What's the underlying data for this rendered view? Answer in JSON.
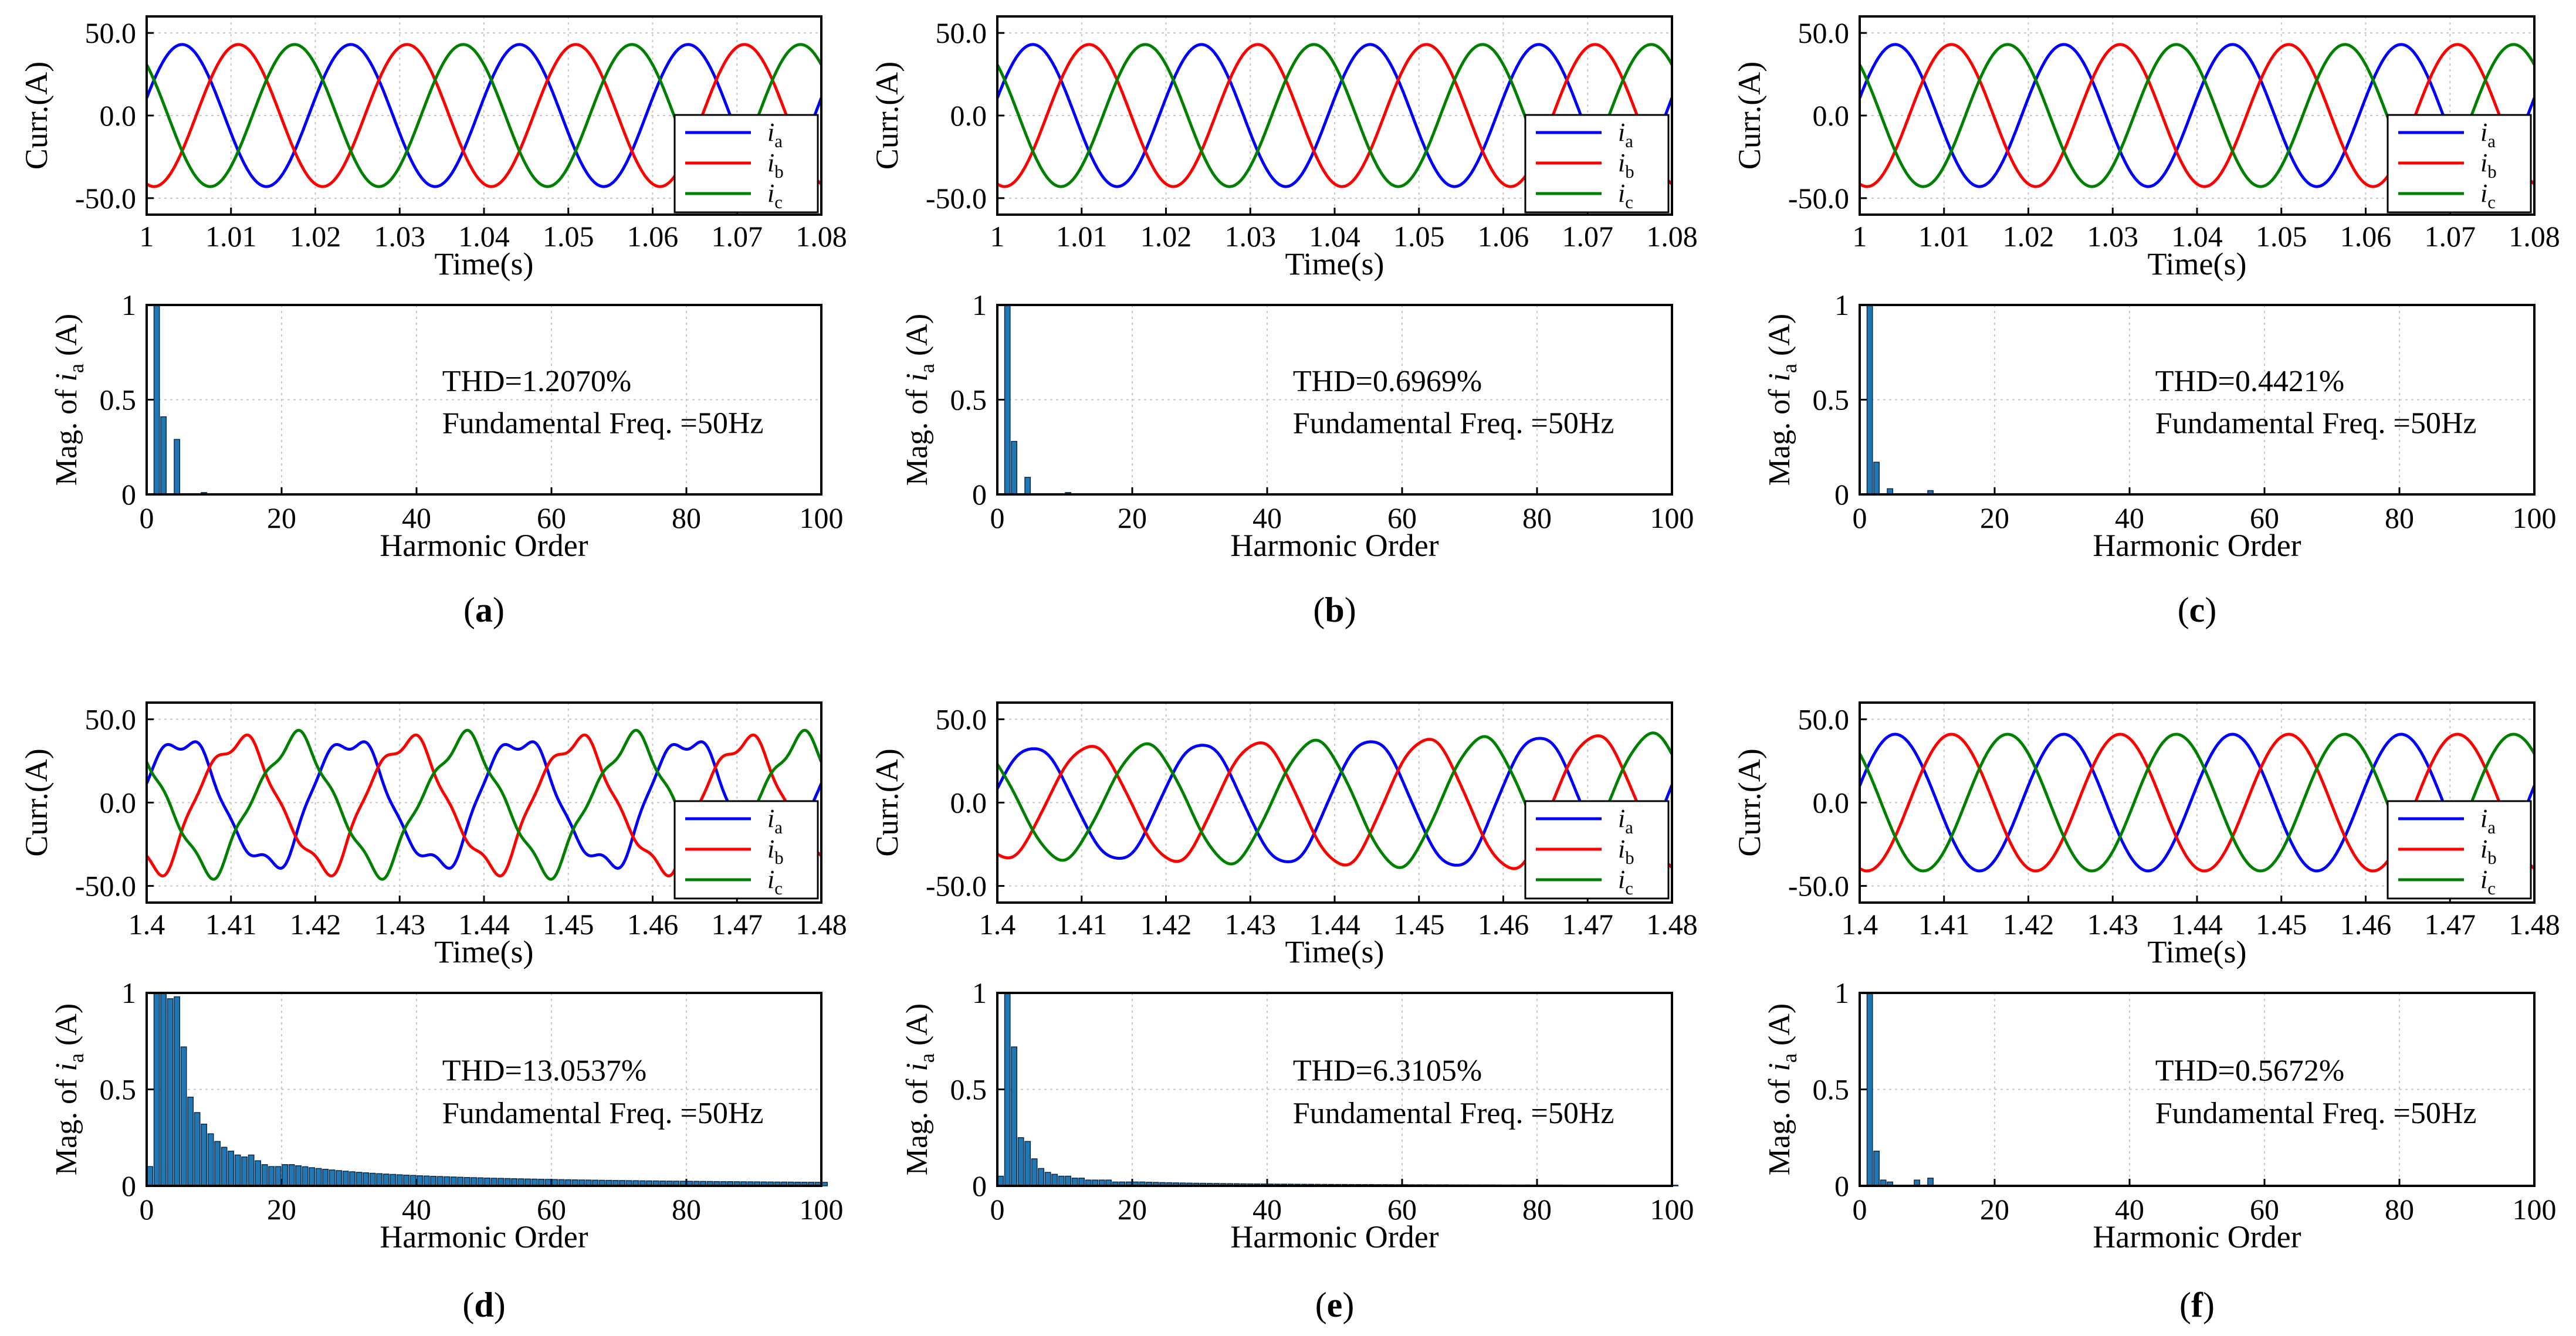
{
  "figure": {
    "time_xlabel": "Time(s)",
    "time_ylabel": "Curr.(A)",
    "harm_xlabel": "Harmonic Order",
    "harm_ylabel_prefix": "Mag. of ",
    "harm_ylabel_var": "i",
    "harm_ylabel_sub": "a",
    "harm_ylabel_suffix": " (A)",
    "legend": [
      {
        "var": "i",
        "sub": "a",
        "color": "#0000ff"
      },
      {
        "var": "i",
        "sub": "b",
        "color": "#ff0000"
      },
      {
        "var": "i",
        "sub": "c",
        "color": "#008000"
      }
    ],
    "bar_color": "#1f77b4",
    "bar_edge_color": "#0b2a4a"
  },
  "chart_data": [
    {
      "panel": "a",
      "time_plot": {
        "type": "line",
        "xlim": [
          1.0,
          1.08
        ],
        "ylim": [
          -60,
          60
        ],
        "xticks": [
          "1",
          "1.01",
          "1.02",
          "1.03",
          "1.04",
          "1.05",
          "1.06",
          "1.07",
          "1.08"
        ],
        "yticks": [
          "50.0",
          "0.0",
          "-50.0"
        ],
        "series": [
          {
            "name": "ia",
            "amplitude": 43
          },
          {
            "name": "ib",
            "amplitude": 43
          },
          {
            "name": "ic",
            "amplitude": 43
          }
        ],
        "frequency_hz": 50,
        "distortion": 0
      },
      "harmonic_plot": {
        "type": "bar",
        "xlim": [
          0,
          100
        ],
        "ylim": [
          0,
          1
        ],
        "xticks": [
          "0",
          "20",
          "40",
          "60",
          "80",
          "100"
        ],
        "yticks": [
          "0",
          "0.5",
          "1"
        ],
        "orders": [
          1,
          2,
          4,
          8
        ],
        "values": [
          1.0,
          0.41,
          0.29,
          0.01
        ],
        "thd": "THD=1.2070%",
        "fundamental": "Fundamental Freq. =50Hz"
      }
    },
    {
      "panel": "b",
      "time_plot": {
        "type": "line",
        "xlim": [
          1.0,
          1.08
        ],
        "ylim": [
          -60,
          60
        ],
        "xticks": [
          "1",
          "1.01",
          "1.02",
          "1.03",
          "1.04",
          "1.05",
          "1.06",
          "1.07",
          "1.08"
        ],
        "yticks": [
          "50.0",
          "0.0",
          "-50.0"
        ],
        "series": [
          {
            "name": "ia",
            "amplitude": 43
          },
          {
            "name": "ib",
            "amplitude": 43
          },
          {
            "name": "ic",
            "amplitude": 43
          }
        ],
        "frequency_hz": 50,
        "distortion": 0
      },
      "harmonic_plot": {
        "type": "bar",
        "xlim": [
          0,
          100
        ],
        "ylim": [
          0,
          1
        ],
        "xticks": [
          "0",
          "20",
          "40",
          "60",
          "80",
          "100"
        ],
        "yticks": [
          "0",
          "0.5",
          "1"
        ],
        "orders": [
          1,
          2,
          4,
          10
        ],
        "values": [
          1.0,
          0.28,
          0.09,
          0.01
        ],
        "thd": "THD=0.6969%",
        "fundamental": "Fundamental Freq. =50Hz"
      }
    },
    {
      "panel": "c",
      "time_plot": {
        "type": "line",
        "xlim": [
          1.0,
          1.08
        ],
        "ylim": [
          -60,
          60
        ],
        "xticks": [
          "1",
          "1.01",
          "1.02",
          "1.03",
          "1.04",
          "1.05",
          "1.06",
          "1.07",
          "1.08"
        ],
        "yticks": [
          "50.0",
          "0.0",
          "-50.0"
        ],
        "series": [
          {
            "name": "ia",
            "amplitude": 43
          },
          {
            "name": "ib",
            "amplitude": 43
          },
          {
            "name": "ic",
            "amplitude": 43
          }
        ],
        "frequency_hz": 50,
        "distortion": 0
      },
      "harmonic_plot": {
        "type": "bar",
        "xlim": [
          0,
          100
        ],
        "ylim": [
          0,
          1
        ],
        "xticks": [
          "0",
          "20",
          "40",
          "60",
          "80",
          "100"
        ],
        "yticks": [
          "0",
          "0.5",
          "1"
        ],
        "orders": [
          1,
          2,
          4,
          10
        ],
        "values": [
          1.0,
          0.17,
          0.03,
          0.02
        ],
        "thd": "THD=0.4421%",
        "fundamental": "Fundamental Freq. =50Hz"
      }
    },
    {
      "panel": "d",
      "time_plot": {
        "type": "line",
        "xlim": [
          1.4,
          1.48
        ],
        "ylim": [
          -60,
          60
        ],
        "xticks": [
          "1.4",
          "1.41",
          "1.42",
          "1.43",
          "1.44",
          "1.45",
          "1.46",
          "1.47",
          "1.48"
        ],
        "yticks": [
          "50.0",
          "0.0",
          "-50.0"
        ],
        "series": [
          {
            "name": "ia",
            "amplitude": 40
          },
          {
            "name": "ib",
            "amplitude": 40
          },
          {
            "name": "ic",
            "amplitude": 40
          }
        ],
        "frequency_hz": 50,
        "distortion": 0.3
      },
      "harmonic_plot": {
        "type": "bar",
        "xlim": [
          0,
          100
        ],
        "ylim": [
          0,
          1
        ],
        "xticks": [
          "0",
          "20",
          "40",
          "60",
          "80",
          "100"
        ],
        "yticks": [
          "0",
          "0.5",
          "1"
        ],
        "orders": [
          0,
          1,
          2,
          3,
          4,
          5,
          6,
          7,
          8,
          9,
          10,
          11,
          12,
          13,
          14,
          15,
          16,
          17,
          18,
          19,
          20
        ],
        "values": [
          0.1,
          1.0,
          1.0,
          0.97,
          0.98,
          0.72,
          0.46,
          0.38,
          0.32,
          0.27,
          0.23,
          0.2,
          0.18,
          0.16,
          0.15,
          0.16,
          0.13,
          0.11,
          0.1,
          0.1,
          0.11
        ],
        "tail_decay_from_order": 21,
        "thd": "THD=13.0537%",
        "fundamental": "Fundamental Freq. =50Hz"
      }
    },
    {
      "panel": "e",
      "time_plot": {
        "type": "line",
        "xlim": [
          1.4,
          1.48
        ],
        "ylim": [
          -60,
          60
        ],
        "xticks": [
          "1.4",
          "1.41",
          "1.42",
          "1.43",
          "1.44",
          "1.45",
          "1.46",
          "1.47",
          "1.48"
        ],
        "yticks": [
          "50.0",
          "0.0",
          "-50.0"
        ],
        "series": [
          {
            "name": "ia",
            "amplitude": 33
          },
          {
            "name": "ib",
            "amplitude": 33
          },
          {
            "name": "ic",
            "amplitude": 33
          }
        ],
        "frequency_hz": 50,
        "distortion": 0.05,
        "amplitude_growth": 0.26
      },
      "harmonic_plot": {
        "type": "bar",
        "xlim": [
          0,
          100
        ],
        "ylim": [
          0,
          1
        ],
        "xticks": [
          "0",
          "20",
          "40",
          "60",
          "80",
          "100"
        ],
        "yticks": [
          "0",
          "0.5",
          "1"
        ],
        "orders": [
          0,
          1,
          2,
          3,
          4,
          5,
          6,
          7,
          8,
          9,
          10,
          11,
          12,
          13,
          14,
          15,
          16,
          17,
          18,
          19,
          20
        ],
        "values": [
          0.05,
          1.0,
          0.72,
          0.25,
          0.23,
          0.14,
          0.09,
          0.07,
          0.06,
          0.05,
          0.05,
          0.04,
          0.04,
          0.03,
          0.03,
          0.03,
          0.03,
          0.02,
          0.02,
          0.02,
          0.02
        ],
        "tail_decay_from_order": 21,
        "thd": "THD=6.3105%",
        "fundamental": "Fundamental Freq. =50Hz"
      }
    },
    {
      "panel": "f",
      "time_plot": {
        "type": "line",
        "xlim": [
          1.4,
          1.48
        ],
        "ylim": [
          -60,
          60
        ],
        "xticks": [
          "1.4",
          "1.41",
          "1.42",
          "1.43",
          "1.44",
          "1.45",
          "1.46",
          "1.47",
          "1.48"
        ],
        "yticks": [
          "50.0",
          "0.0",
          "-50.0"
        ],
        "series": [
          {
            "name": "ia",
            "amplitude": 41
          },
          {
            "name": "ib",
            "amplitude": 41
          },
          {
            "name": "ic",
            "amplitude": 41
          }
        ],
        "frequency_hz": 50,
        "distortion": 0
      },
      "harmonic_plot": {
        "type": "bar",
        "xlim": [
          0,
          100
        ],
        "ylim": [
          0,
          1
        ],
        "xticks": [
          "0",
          "20",
          "40",
          "60",
          "80",
          "100"
        ],
        "yticks": [
          "0",
          "0.5",
          "1"
        ],
        "orders": [
          1,
          2,
          3,
          4,
          8,
          10
        ],
        "values": [
          1.0,
          0.18,
          0.03,
          0.02,
          0.03,
          0.04
        ],
        "thd": "THD=0.5672%",
        "fundamental": "Fundamental Freq. =50Hz"
      }
    }
  ]
}
